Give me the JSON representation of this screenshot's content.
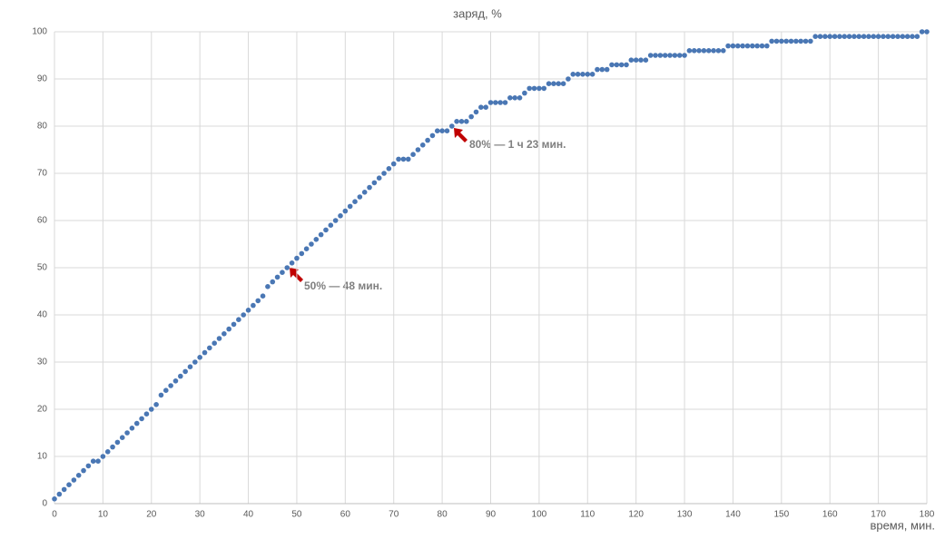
{
  "chart_data": {
    "type": "scatter",
    "title": "заряд, %",
    "xlabel": "время, мин.",
    "annotations": [
      "50% — 48 мин.",
      "80% — 1 ч 23 мин."
    ],
    "color": "#4a77b4",
    "grid": true,
    "xlim": [
      0,
      180
    ],
    "xticks": [
      0,
      10,
      20,
      30,
      40,
      50,
      60,
      70,
      80,
      90,
      100,
      110,
      120,
      130,
      140,
      150,
      160,
      170,
      180
    ],
    "ylim": [
      0,
      100
    ],
    "yticks": [
      0,
      10,
      20,
      30,
      40,
      50,
      60,
      70,
      80,
      90,
      100
    ],
    "x": [
      0,
      1,
      2,
      3,
      4,
      5,
      6,
      7,
      8,
      9,
      10,
      11,
      12,
      13,
      14,
      15,
      16,
      17,
      18,
      19,
      20,
      21,
      22,
      23,
      24,
      25,
      26,
      27,
      28,
      29,
      30,
      31,
      32,
      33,
      34,
      35,
      36,
      37,
      38,
      39,
      40,
      41,
      42,
      43,
      44,
      45,
      46,
      47,
      48,
      49,
      50,
      51,
      52,
      53,
      54,
      55,
      56,
      57,
      58,
      59,
      60,
      61,
      62,
      63,
      64,
      65,
      66,
      67,
      68,
      69,
      70,
      71,
      72,
      73,
      74,
      75,
      76,
      77,
      78,
      79,
      80,
      81,
      82,
      83,
      84,
      85,
      86,
      87,
      88,
      89,
      90,
      91,
      92,
      93,
      94,
      95,
      96,
      97,
      98,
      99,
      100,
      101,
      102,
      103,
      104,
      105,
      106,
      107,
      108,
      109,
      110,
      111,
      112,
      113,
      114,
      115,
      116,
      117,
      118,
      119,
      120,
      121,
      122,
      123,
      124,
      125,
      126,
      127,
      128,
      129,
      130,
      131,
      132,
      133,
      134,
      135,
      136,
      137,
      138,
      139,
      140,
      141,
      142,
      143,
      144,
      145,
      146,
      147,
      148,
      149,
      150,
      151,
      152,
      153,
      154,
      155,
      156,
      157,
      158,
      159,
      160,
      161,
      162,
      163,
      164,
      165,
      166,
      167,
      168,
      169,
      170,
      171,
      172,
      173,
      174,
      175,
      176,
      177,
      178,
      179,
      180
    ],
    "values": [
      1,
      2,
      3,
      4,
      5,
      6,
      7,
      8,
      9,
      9,
      10,
      11,
      12,
      13,
      14,
      15,
      16,
      17,
      18,
      19,
      20,
      21,
      23,
      24,
      25,
      26,
      27,
      28,
      29,
      30,
      31,
      32,
      33,
      34,
      35,
      36,
      37,
      38,
      39,
      40,
      41,
      42,
      43,
      44,
      46,
      47,
      48,
      49,
      50,
      51,
      52,
      53,
      54,
      55,
      56,
      57,
      58,
      59,
      60,
      61,
      62,
      63,
      64,
      65,
      66,
      67,
      68,
      69,
      70,
      71,
      72,
      73,
      73,
      73,
      74,
      75,
      76,
      77,
      78,
      79,
      79,
      79,
      80,
      81,
      81,
      81,
      82,
      83,
      84,
      84,
      85,
      85,
      85,
      85,
      86,
      86,
      86,
      87,
      88,
      88,
      88,
      88,
      89,
      89,
      89,
      89,
      90,
      91,
      91,
      91,
      91,
      91,
      92,
      92,
      92,
      93,
      93,
      93,
      93,
      94,
      94,
      94,
      94,
      95,
      95,
      95,
      95,
      95,
      95,
      95,
      95,
      96,
      96,
      96,
      96,
      96,
      96,
      96,
      96,
      97,
      97,
      97,
      97,
      97,
      97,
      97,
      97,
      97,
      98,
      98,
      98,
      98,
      98,
      98,
      98,
      98,
      98,
      99,
      99,
      99,
      99,
      99,
      99,
      99,
      99,
      99,
      99,
      99,
      99,
      99,
      99,
      99,
      99,
      99,
      99,
      99,
      99,
      99,
      99,
      100,
      100
    ]
  }
}
